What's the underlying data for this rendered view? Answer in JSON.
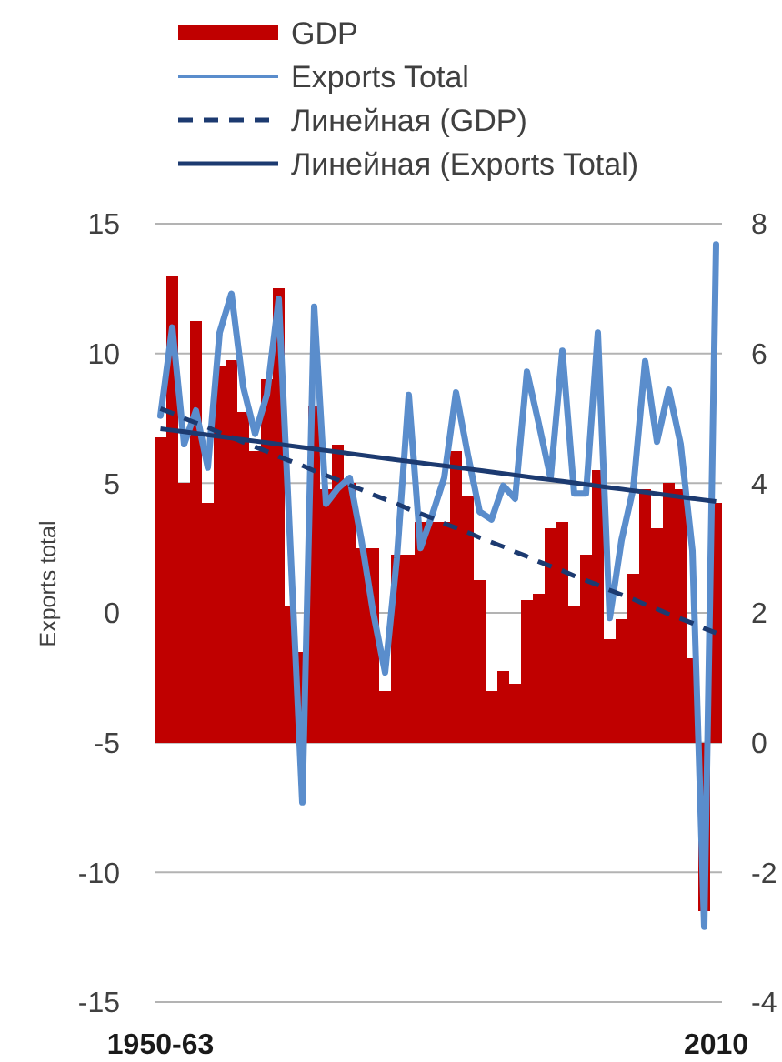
{
  "chart_data": {
    "type": "bar",
    "ylabel": "Exports total",
    "categories": [
      "1950-63",
      null,
      null,
      null,
      null,
      null,
      null,
      null,
      null,
      null,
      null,
      null,
      null,
      null,
      null,
      null,
      null,
      null,
      null,
      null,
      null,
      null,
      null,
      null,
      null,
      null,
      null,
      null,
      null,
      null,
      null,
      null,
      null,
      null,
      null,
      null,
      null,
      null,
      null,
      null,
      null,
      null,
      null,
      null,
      null,
      null,
      null,
      "2010"
    ],
    "series": [
      {
        "name": "GDP",
        "axis": "y2",
        "color": "#c00000",
        "values": [
          4.7,
          7.2,
          4.0,
          6.5,
          3.7,
          5.8,
          5.9,
          5.1,
          4.5,
          5.6,
          7.0,
          2.1,
          1.4,
          5.2,
          3.9,
          4.6,
          4.0,
          3.0,
          3.0,
          0.8,
          2.9,
          2.9,
          3.4,
          3.4,
          3.4,
          4.5,
          3.8,
          2.5,
          0.8,
          1.1,
          0.9,
          2.2,
          2.3,
          3.3,
          3.4,
          2.1,
          2.9,
          4.2,
          1.6,
          1.9,
          2.6,
          3.9,
          3.3,
          4.0,
          3.9,
          1.3,
          -2.6,
          3.7
        ]
      },
      {
        "name": "Exports Total",
        "type": "line",
        "color": "#5a8dcc",
        "values": [
          7.6,
          11.0,
          6.5,
          7.8,
          5.6,
          10.8,
          12.3,
          8.7,
          6.9,
          8.4,
          12.1,
          2.4,
          -7.3,
          11.8,
          4.2,
          4.8,
          5.2,
          2.8,
          0.0,
          -2.3,
          2.1,
          8.4,
          2.5,
          3.8,
          5.2,
          8.5,
          6.1,
          3.9,
          3.6,
          4.9,
          4.4,
          9.3,
          7.3,
          5.2,
          10.1,
          4.6,
          4.6,
          10.8,
          -0.2,
          2.8,
          4.8,
          9.7,
          6.6,
          8.6,
          6.5,
          2.4,
          -12.1,
          14.2
        ]
      },
      {
        "name": "Линейная (GDP)",
        "type": "line",
        "axis": "y2",
        "line_style": "dashed",
        "color": "#1c3a70",
        "values": [
          5.15,
          5.08,
          5.0,
          4.93,
          4.86,
          4.78,
          4.71,
          4.63,
          4.56,
          4.49,
          4.41,
          4.34,
          4.27,
          4.19,
          4.12,
          4.05,
          3.97,
          3.9,
          3.82,
          3.75,
          3.68,
          3.6,
          3.53,
          3.46,
          3.38,
          3.31,
          3.24,
          3.16,
          3.09,
          3.02,
          2.94,
          2.87,
          2.79,
          2.72,
          2.65,
          2.57,
          2.5,
          2.43,
          2.35,
          2.28,
          2.21,
          2.13,
          2.06,
          1.98,
          1.91,
          1.84,
          1.76,
          1.69
        ]
      },
      {
        "name": "Линейная (Exports Total)",
        "type": "line",
        "line_style": "solid",
        "color": "#1c3a70",
        "values": [
          7.1,
          7.04,
          6.98,
          6.92,
          6.86,
          6.8,
          6.74,
          6.68,
          6.62,
          6.56,
          6.5,
          6.44,
          6.38,
          6.32,
          6.26,
          6.2,
          6.14,
          6.08,
          6.02,
          5.96,
          5.9,
          5.84,
          5.78,
          5.72,
          5.67,
          5.61,
          5.55,
          5.49,
          5.43,
          5.37,
          5.31,
          5.25,
          5.19,
          5.13,
          5.07,
          5.01,
          4.95,
          4.89,
          4.83,
          4.77,
          4.71,
          4.65,
          4.59,
          4.53,
          4.47,
          4.41,
          4.35,
          4.29
        ]
      }
    ],
    "ylim": [
      -15,
      15
    ],
    "yticks": [
      -15,
      -10,
      -5,
      0,
      5,
      10,
      15
    ],
    "y2lim": [
      -4,
      8
    ],
    "y2ticks": [
      -4,
      -2,
      0,
      2,
      4,
      6,
      8
    ],
    "grid": "y",
    "legend": "top"
  }
}
